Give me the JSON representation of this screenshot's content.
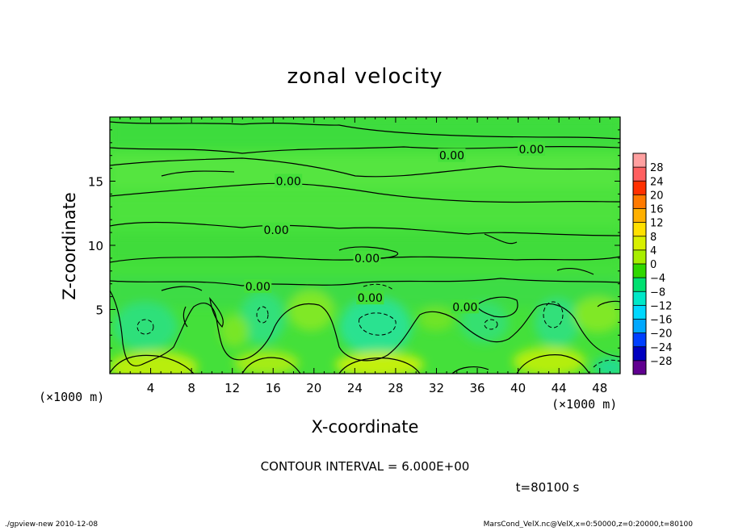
{
  "chart_data": {
    "type": "heatmap",
    "title": "zonal velocity",
    "xlabel": "X-coordinate",
    "ylabel": "Z-coordinate",
    "x_unit_left": "(×1000 m)",
    "x_unit_right": "(×1000 m)",
    "xlim": [
      0,
      50
    ],
    "ylim": [
      0,
      20
    ],
    "x_ticks": [
      4,
      8,
      12,
      16,
      20,
      24,
      28,
      32,
      36,
      40,
      44,
      48
    ],
    "y_ticks": [
      5,
      10,
      15
    ],
    "colorbar": {
      "levels": [
        28,
        24,
        20,
        16,
        12,
        8,
        4,
        0,
        -4,
        -8,
        -12,
        -16,
        -20,
        -24,
        -28
      ],
      "colors": [
        "#ffa0a0",
        "#ff6060",
        "#ff3000",
        "#ff7a00",
        "#ffb000",
        "#ffe000",
        "#d8f000",
        "#a8ee00",
        "#30d800",
        "#00e070",
        "#00e8c8",
        "#00d8ff",
        "#00a8ff",
        "#0040ff",
        "#0000c0",
        "#600090"
      ]
    },
    "contour_labels": [
      {
        "text": "0.00",
        "x": 33.5,
        "z": 17.0
      },
      {
        "text": "0.00",
        "x": 41.3,
        "z": 17.5
      },
      {
        "text": "0.00",
        "x": 17.5,
        "z": 15.0
      },
      {
        "text": "0.00",
        "x": 16.3,
        "z": 11.2
      },
      {
        "text": "0.00",
        "x": 25.2,
        "z": 9.0
      },
      {
        "text": "0.00",
        "x": 14.5,
        "z": 6.8
      },
      {
        "text": "0.00",
        "x": 25.5,
        "z": 5.9
      },
      {
        "text": "0.00",
        "x": 34.8,
        "z": 5.2
      }
    ],
    "contour_interval": "CONTOUR INTERVAL = 6.000E+00",
    "time_label": "t=80100 s"
  },
  "footer": {
    "left": "./gpview-new  2010-12-08",
    "right": "MarsCond_VelX.nc@VelX,x=0:50000,z=0:20000,t=80100"
  }
}
